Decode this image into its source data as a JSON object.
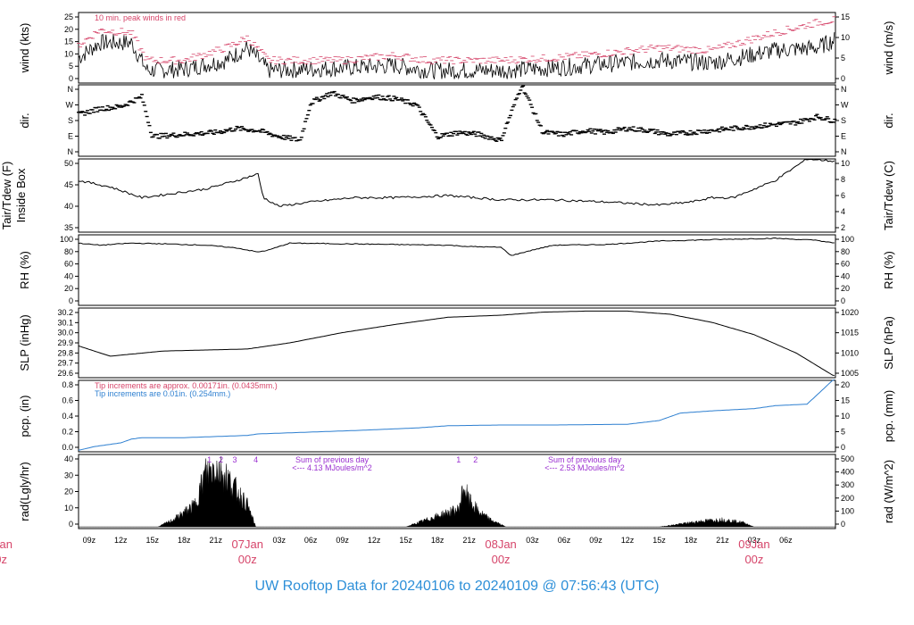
{
  "footer": "UW Rooftop Data for 20240106  to  20240109 @ 07:56:43  (UTC)",
  "colors": {
    "red": "#d6456a",
    "blue": "#2d7fd0",
    "purple": "#9a2fd0",
    "footer": "#2d8fd8"
  },
  "chart_data": [
    {
      "type": "line",
      "name": "wind",
      "ylabel_left": "wind (kts)",
      "ylabel_right": "wind (m/s)",
      "yticks_left": [
        "0",
        "5",
        "10",
        "15",
        "20",
        "25"
      ],
      "yticks_right": [
        "0",
        "5",
        "10",
        "15"
      ],
      "ylim": [
        0,
        28
      ],
      "annotation": "10 min. peak winds in red",
      "series": [
        {
          "name": "wind",
          "points": [
            [
              0,
              10
            ],
            [
              2,
              16
            ],
            [
              5,
              16
            ],
            [
              6.5,
              5
            ],
            [
              10,
              5.5
            ],
            [
              14,
              9
            ],
            [
              16,
              14
            ],
            [
              18,
              5
            ],
            [
              25,
              6
            ],
            [
              30,
              7
            ],
            [
              33,
              5
            ],
            [
              40,
              5
            ],
            [
              45,
              6
            ],
            [
              48,
              7
            ],
            [
              55,
              9
            ],
            [
              60,
              8
            ],
            [
              66,
              13
            ],
            [
              70,
              14
            ],
            [
              71.5,
              17
            ]
          ]
        },
        {
          "name": "10 min. peak winds",
          "points": [
            [
              0,
              15
            ],
            [
              2,
              21
            ],
            [
              5,
              20
            ],
            [
              6.5,
              9
            ],
            [
              10,
              9
            ],
            [
              14,
              14
            ],
            [
              16,
              18
            ],
            [
              18,
              9
            ],
            [
              25,
              9
            ],
            [
              30,
              11
            ],
            [
              33,
              9
            ],
            [
              40,
              9
            ],
            [
              45,
              10
            ],
            [
              48,
              11
            ],
            [
              55,
              14
            ],
            [
              60,
              13
            ],
            [
              66,
              20
            ],
            [
              70,
              24
            ],
            [
              71.5,
              25
            ]
          ]
        }
      ]
    },
    {
      "type": "scatter",
      "name": "dir",
      "ylabel_left": "dir.",
      "ylabel_right": "dir.",
      "yticks_left": [
        "N",
        "E",
        "S",
        "W",
        "N"
      ],
      "yticks_right": [
        "N",
        "E",
        "S",
        "W",
        "N"
      ],
      "ylim": [
        0,
        360
      ],
      "series": [
        {
          "name": "dir",
          "points": [
            [
              0,
              210
            ],
            [
              2,
              240
            ],
            [
              4,
              250
            ],
            [
              6,
              300
            ],
            [
              7,
              100
            ],
            [
              10,
              110
            ],
            [
              13,
              120
            ],
            [
              15,
              140
            ],
            [
              17,
              130
            ],
            [
              19,
              100
            ],
            [
              21,
              80
            ],
            [
              22,
              270
            ],
            [
              24,
              320
            ],
            [
              26,
              280
            ],
            [
              28,
              300
            ],
            [
              30,
              290
            ],
            [
              32,
              260
            ],
            [
              34,
              100
            ],
            [
              36,
              120
            ],
            [
              38,
              110
            ],
            [
              40,
              80
            ],
            [
              42,
              360
            ],
            [
              44,
              120
            ],
            [
              46,
              110
            ],
            [
              48,
              130
            ],
            [
              50,
              120
            ],
            [
              52,
              140
            ],
            [
              54,
              130
            ],
            [
              56,
              110
            ],
            [
              58,
              120
            ],
            [
              60,
              130
            ],
            [
              62,
              140
            ],
            [
              64,
              150
            ],
            [
              66,
              160
            ],
            [
              68,
              170
            ],
            [
              70,
              200
            ],
            [
              71.5,
              180
            ]
          ]
        }
      ]
    },
    {
      "type": "line",
      "name": "temperature",
      "ylabel_left": "Tair/Tdew (F)\nInside Box",
      "ylabel_right": "Tair/Tdew (C)",
      "yticks_left": [
        "35",
        "40",
        "45",
        "50"
      ],
      "yticks_right": [
        "2",
        "4",
        "6",
        "8",
        "10"
      ],
      "ylim": [
        33,
        50
      ],
      "series": [
        {
          "name": "Tair",
          "points": [
            [
              0,
              45
            ],
            [
              3,
              43.5
            ],
            [
              6,
              41
            ],
            [
              9,
              42
            ],
            [
              12,
              43
            ],
            [
              15,
              45
            ],
            [
              17,
              46.5
            ],
            [
              17.5,
              41
            ],
            [
              19,
              39
            ],
            [
              22,
              40
            ],
            [
              26,
              41
            ],
            [
              30,
              41
            ],
            [
              35,
              41.5
            ],
            [
              40,
              40.5
            ],
            [
              45,
              40.5
            ],
            [
              50,
              40
            ],
            [
              55,
              39.3
            ],
            [
              58,
              40
            ],
            [
              60,
              41
            ],
            [
              62,
              41
            ],
            [
              66,
              45
            ],
            [
              69,
              50
            ],
            [
              71.5,
              49.5
            ]
          ]
        }
      ]
    },
    {
      "type": "line",
      "name": "rh",
      "ylabel_left": "RH (%)",
      "ylabel_right": "RH (%)",
      "yticks_left": [
        "0",
        "20",
        "40",
        "60",
        "80",
        "100"
      ],
      "yticks_right": [
        "0",
        "20",
        "40",
        "60",
        "80",
        "100"
      ],
      "ylim": [
        0,
        102
      ],
      "series": [
        {
          "name": "RH",
          "points": [
            [
              0,
              90
            ],
            [
              2,
              87
            ],
            [
              5,
              90
            ],
            [
              8,
              89
            ],
            [
              12,
              87
            ],
            [
              15,
              83
            ],
            [
              17,
              77
            ],
            [
              18,
              80
            ],
            [
              20,
              90
            ],
            [
              25,
              89
            ],
            [
              30,
              88
            ],
            [
              35,
              87
            ],
            [
              37,
              85
            ],
            [
              40,
              84
            ],
            [
              41,
              72
            ],
            [
              43,
              80
            ],
            [
              45,
              87
            ],
            [
              50,
              88
            ],
            [
              55,
              93
            ],
            [
              60,
              95
            ],
            [
              66,
              97
            ],
            [
              70,
              94
            ],
            [
              71.5,
              90
            ]
          ]
        }
      ]
    },
    {
      "type": "line",
      "name": "slp",
      "ylabel_left": "SLP (inHg)",
      "ylabel_right": "SLP (hPa)",
      "yticks_left": [
        "29.6",
        "29.7",
        "29.8",
        "29.9",
        "30.0",
        "30.1",
        "30.2"
      ],
      "yticks_right": [
        "1005",
        "1010",
        "1015",
        "1020"
      ],
      "ylim": [
        29.56,
        30.24
      ],
      "series": [
        {
          "name": "SLP",
          "points": [
            [
              0,
              29.87
            ],
            [
              3,
              29.77
            ],
            [
              8,
              29.82
            ],
            [
              12,
              29.83
            ],
            [
              16,
              29.84
            ],
            [
              20,
              29.9
            ],
            [
              25,
              30.0
            ],
            [
              30,
              30.08
            ],
            [
              35,
              30.15
            ],
            [
              40,
              30.17
            ],
            [
              44,
              30.2
            ],
            [
              48,
              30.21
            ],
            [
              52,
              30.21
            ],
            [
              56,
              30.18
            ],
            [
              60,
              30.1
            ],
            [
              64,
              29.98
            ],
            [
              68,
              29.8
            ],
            [
              71.5,
              29.58
            ]
          ]
        }
      ]
    },
    {
      "type": "line",
      "name": "pcp",
      "ylabel_left": "pcp. (in)",
      "ylabel_right": "pcp. (mm)",
      "yticks_left": [
        "0.0",
        "0.2",
        "0.4",
        "0.6",
        "0.8"
      ],
      "yticks_right": [
        "0",
        "5",
        "10",
        "15",
        "20"
      ],
      "ylim": [
        -0.02,
        0.94
      ],
      "annotations": [
        "Tip increments are approx. 0.00171in. (0.0435mm.)",
        "Tip increments are 0.01in. (0.254mm.)"
      ],
      "series": [
        {
          "name": "precip",
          "points": [
            [
              0,
              0
            ],
            [
              1.5,
              0.05
            ],
            [
              4,
              0.1
            ],
            [
              5,
              0.15
            ],
            [
              6,
              0.17
            ],
            [
              10,
              0.17
            ],
            [
              16,
              0.2
            ],
            [
              17,
              0.22
            ],
            [
              21,
              0.24
            ],
            [
              27,
              0.27
            ],
            [
              32,
              0.3
            ],
            [
              35,
              0.33
            ],
            [
              40,
              0.34
            ],
            [
              45,
              0.34
            ],
            [
              52,
              0.35
            ],
            [
              55,
              0.4
            ],
            [
              57,
              0.5
            ],
            [
              60,
              0.53
            ],
            [
              64,
              0.56
            ],
            [
              66,
              0.6
            ],
            [
              69,
              0.62
            ],
            [
              70,
              0.75
            ],
            [
              71.5,
              0.95
            ]
          ]
        }
      ]
    },
    {
      "type": "area",
      "name": "rad",
      "ylabel_left": "rad(Lgly/hr)",
      "ylabel_right": "rad (W/m^2)",
      "yticks_left": [
        "0",
        "10",
        "20",
        "30",
        "40"
      ],
      "yticks_right": [
        "0",
        "100",
        "200",
        "300",
        "400",
        "500"
      ],
      "ylim": [
        -1,
        43
      ],
      "annotations": [
        "Sum of previous day\n<--- 4.13 MJoules/m^2",
        "Sum of previous day\n<--- 2.53 MJoules/m^2"
      ],
      "peak_markers": [
        "1",
        "2",
        "3",
        "4",
        "1",
        "2"
      ],
      "series": [
        {
          "name": "radiation",
          "points": [
            [
              7.5,
              0
            ],
            [
              9,
              5
            ],
            [
              11,
              15
            ],
            [
              12,
              37
            ],
            [
              13,
              42
            ],
            [
              14,
              35
            ],
            [
              15,
              25
            ],
            [
              16,
              15
            ],
            [
              16.8,
              0
            ],
            [
              31,
              0
            ],
            [
              33,
              5
            ],
            [
              35,
              10
            ],
            [
              36,
              12
            ],
            [
              36.5,
              28
            ],
            [
              37,
              18
            ],
            [
              38,
              10
            ],
            [
              39,
              5
            ],
            [
              40.5,
              0
            ],
            [
              55,
              0
            ],
            [
              57,
              2
            ],
            [
              59,
              4
            ],
            [
              61,
              5
            ],
            [
              63,
              3
            ],
            [
              64,
              0
            ]
          ]
        }
      ]
    }
  ],
  "x_axis": {
    "tick_labels": [
      "09z",
      "12z",
      "15z",
      "18z",
      "21z",
      "03z",
      "06z",
      "09z",
      "12z",
      "15z",
      "18z",
      "21z",
      "03z",
      "06z",
      "09z",
      "12z",
      "15z",
      "18z",
      "21z",
      "03z",
      "06z"
    ],
    "day_labels": [
      {
        "date": "07Jan",
        "time": "00z"
      },
      {
        "date": "08Jan",
        "time": "00z"
      },
      {
        "date": "09Jan",
        "time": "00z"
      }
    ],
    "edge_label": {
      "date": "Jan",
      "time": "0z"
    }
  }
}
